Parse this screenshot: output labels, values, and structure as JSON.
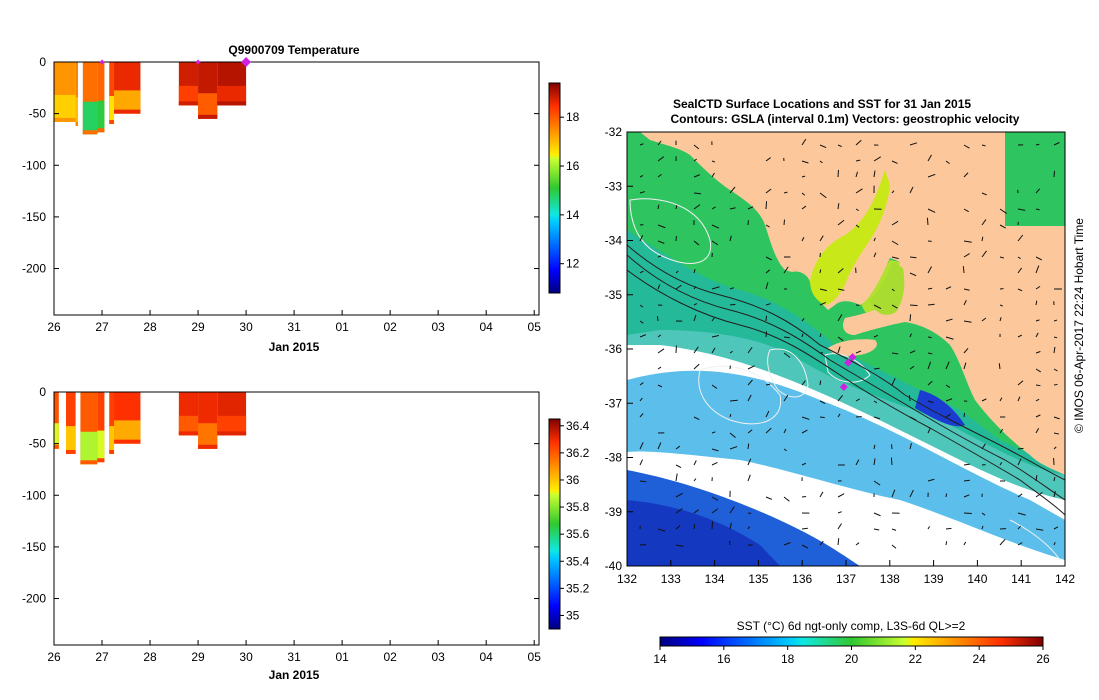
{
  "colors": {
    "land": "#fcc89b",
    "profile_warm": "#d0601a",
    "marker": "#d020e0",
    "background": "#ffffff"
  },
  "chart_data": [
    {
      "type": "heatmap",
      "title": "Q9900709  Temperature",
      "xlabel": "Jan 2015",
      "ylabel": "",
      "x_ticks": [
        "26",
        "27",
        "28",
        "29",
        "30",
        "31",
        "01",
        "02",
        "03",
        "04",
        "05"
      ],
      "xlim": [
        26,
        36.1
      ],
      "y_ticks": [
        "0",
        "-50",
        "-100",
        "-150",
        "-200"
      ],
      "ylim": [
        -245,
        0
      ],
      "colorbar": {
        "min": 10.8,
        "max": 19.4,
        "ticks": [
          "12",
          "14",
          "16",
          "18"
        ],
        "tick_values": [
          12,
          14,
          16,
          18
        ]
      },
      "profiles": [
        {
          "t0": 26.0,
          "t1": 26.45,
          "depth": -58,
          "value": 17.4,
          "core": 16.8
        },
        {
          "t0": 26.45,
          "t1": 26.5,
          "depth": -62,
          "value": 17.6,
          "core": 17.0
        },
        {
          "t0": 26.6,
          "t1": 26.9,
          "depth": -70,
          "value": 17.8,
          "core": 14.8
        },
        {
          "t0": 26.9,
          "t1": 27.05,
          "depth": -68,
          "value": 17.9,
          "core": 15.0
        },
        {
          "t0": 27.15,
          "t1": 27.25,
          "depth": -60,
          "value": 18.2,
          "core": 16.6
        },
        {
          "t0": 27.25,
          "t1": 27.8,
          "depth": -50,
          "value": 18.6,
          "core": 17.2
        },
        {
          "t0": 28.6,
          "t1": 29.0,
          "depth": -42,
          "value": 18.8,
          "core": 18.3
        },
        {
          "t0": 29.0,
          "t1": 29.4,
          "depth": -55,
          "value": 18.9,
          "core": 18.0
        },
        {
          "t0": 29.4,
          "t1": 30.0,
          "depth": -42,
          "value": 19.0,
          "core": 18.6
        }
      ],
      "markers": [
        27.0,
        29.0,
        30.0
      ]
    },
    {
      "type": "heatmap",
      "title": "",
      "xlabel": "Jan 2015",
      "ylabel": "",
      "x_ticks": [
        "26",
        "27",
        "28",
        "29",
        "30",
        "31",
        "01",
        "02",
        "03",
        "04",
        "05"
      ],
      "xlim": [
        26,
        36.1
      ],
      "y_ticks": [
        "0",
        "-50",
        "-100",
        "-150",
        "-200"
      ],
      "ylim": [
        -245,
        0
      ],
      "colorbar": {
        "min": 34.9,
        "max": 36.45,
        "ticks": [
          "35",
          "35.2",
          "35.4",
          "35.6",
          "35.8",
          "36",
          "36.2",
          "36.4"
        ],
        "tick_values": [
          35,
          35.2,
          35.4,
          35.6,
          35.8,
          36,
          36.2,
          36.4
        ]
      },
      "profiles": [
        {
          "t0": 26.0,
          "t1": 26.1,
          "depth": -55,
          "value": 36.22,
          "core": 35.9
        },
        {
          "t0": 26.25,
          "t1": 26.45,
          "depth": -60,
          "value": 36.25,
          "core": 36.0
        },
        {
          "t0": 26.55,
          "t1": 26.9,
          "depth": -70,
          "value": 36.2,
          "core": 35.85
        },
        {
          "t0": 26.9,
          "t1": 27.05,
          "depth": -68,
          "value": 36.25,
          "core": 35.9
        },
        {
          "t0": 27.15,
          "t1": 27.25,
          "depth": -60,
          "value": 36.25,
          "core": 36.0
        },
        {
          "t0": 27.25,
          "t1": 27.8,
          "depth": -50,
          "value": 36.28,
          "core": 36.05
        },
        {
          "t0": 28.6,
          "t1": 29.0,
          "depth": -42,
          "value": 36.3,
          "core": 36.2
        },
        {
          "t0": 29.0,
          "t1": 29.4,
          "depth": -55,
          "value": 36.3,
          "core": 36.15
        },
        {
          "t0": 29.4,
          "t1": 30.0,
          "depth": -42,
          "value": 36.32,
          "core": 36.25
        }
      ],
      "markers": []
    },
    {
      "type": "heatmap",
      "title": "SealCTD Surface Locations and SST for 31 Jan 2015",
      "subtitle": "Contours: GSLA (interval 0.1m) Vectors: geostrophic velocity",
      "x_ticks": [
        "132",
        "133",
        "134",
        "135",
        "136",
        "137",
        "138",
        "139",
        "140",
        "141",
        "142"
      ],
      "xlim": [
        132,
        142
      ],
      "y_ticks": [
        "-32",
        "-33",
        "-34",
        "-35",
        "-36",
        "-37",
        "-38",
        "-39",
        "-40"
      ],
      "ylim": [
        -40,
        -32
      ],
      "colorbar": {
        "label": "SST (°C) 6d ngt-only comp, L3S-6d QL>=2",
        "min": 14,
        "max": 26,
        "ticks": [
          "14",
          "16",
          "18",
          "20",
          "22",
          "24",
          "26"
        ],
        "tick_values": [
          14,
          16,
          18,
          20,
          22,
          24,
          26
        ]
      },
      "seal_locations": [
        [
          137.15,
          -36.15
        ],
        [
          137.05,
          -36.25
        ],
        [
          136.95,
          -36.7
        ]
      ],
      "credit": "© IMOS 06-Apr-2017 22:24 Hobart Time"
    }
  ]
}
